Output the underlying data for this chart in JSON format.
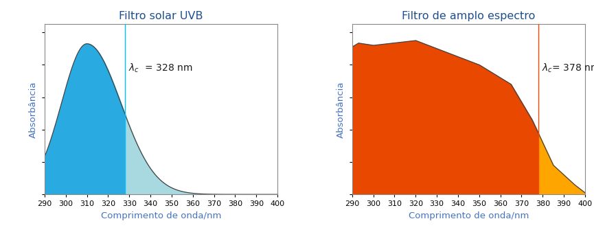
{
  "title1": "Filtro solar UVB",
  "title2": "Filtro de amplo espectro",
  "xlabel": "Comprimento de onda/nm",
  "ylabel": "Absorbância",
  "xmin": 290,
  "xmax": 400,
  "lambda_c1": 328,
  "lambda_c2": 378,
  "title_color": "#1F4E8C",
  "label_color": "#4472C4",
  "vline_color1": "#00BFFF",
  "vline_color2": "#FF4500",
  "fill_color1_left": "#29ABE2",
  "fill_color1_right": "#A8D8E0",
  "fill_color2_left": "#E84800",
  "fill_color2_right": "#FFA500",
  "annotation_color": "#1A1A1A",
  "curve_color": "#444444"
}
